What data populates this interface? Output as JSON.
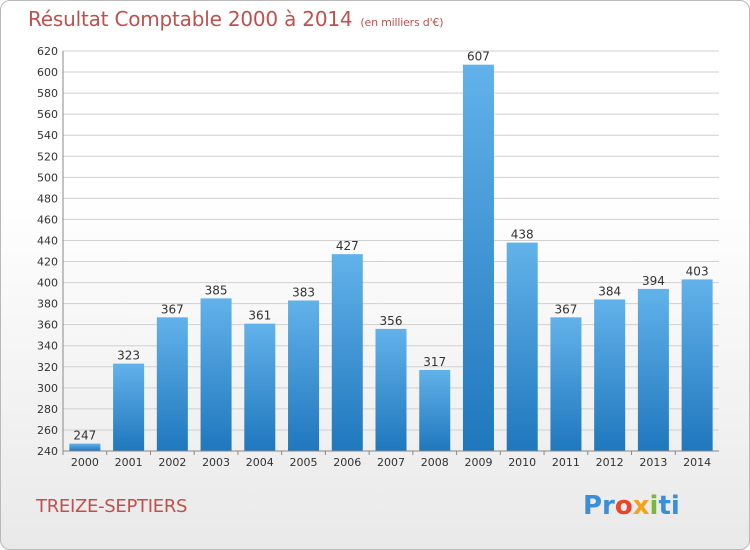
{
  "title": "Résultat Comptable 2000 à 2014",
  "subtitle": "(en milliers d'€)",
  "commune": "TREIZE-SEPTIERS",
  "logo": {
    "p1": "Pr",
    "p2": "o",
    "p3": "x",
    "p4": "i",
    "p5": "ti"
  },
  "colors": {
    "bar_top": "#62b2ea",
    "bar_bottom": "#1f77bd",
    "title": "#c0504d",
    "grid": "#d0d0d0"
  },
  "chart_data": {
    "type": "bar",
    "categories": [
      "2000",
      "2001",
      "2002",
      "2003",
      "2004",
      "2005",
      "2006",
      "2007",
      "2008",
      "2009",
      "2010",
      "2011",
      "2012",
      "2013",
      "2014"
    ],
    "values": [
      247,
      323,
      367,
      385,
      361,
      383,
      427,
      356,
      317,
      607,
      438,
      367,
      384,
      394,
      403
    ],
    "ylim": [
      240,
      620
    ],
    "yticks": [
      240,
      260,
      280,
      300,
      320,
      340,
      360,
      380,
      400,
      420,
      440,
      460,
      480,
      500,
      520,
      540,
      560,
      580,
      600,
      620
    ],
    "grid": true
  }
}
